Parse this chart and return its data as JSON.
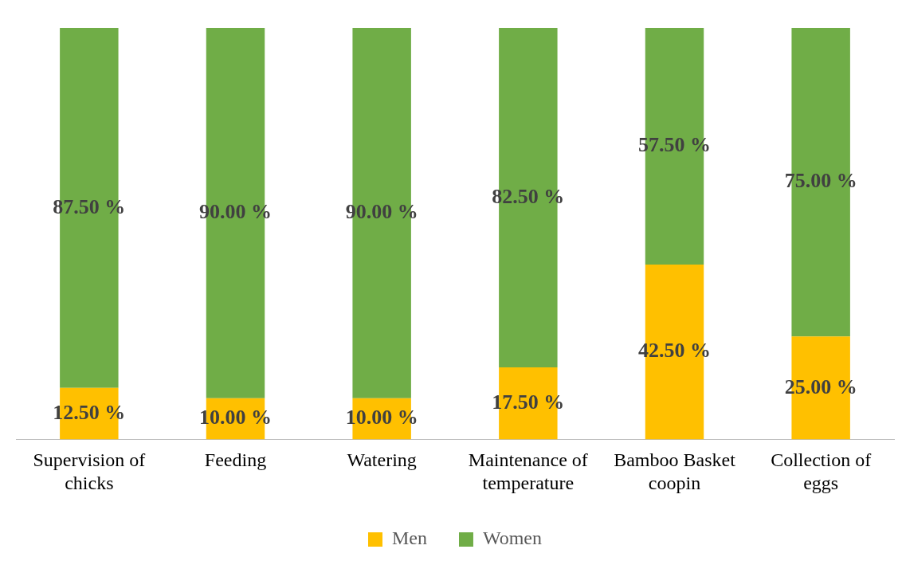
{
  "chart_data": {
    "type": "bar",
    "stacked": true,
    "legend": "bottom",
    "grid": false,
    "tick_labels": "x",
    "categories": [
      "Supervision of chicks",
      "Feeding",
      "Watering",
      "Maintenance of temperature",
      "Bamboo Basket coopin",
      "Collection of eggs"
    ],
    "series": [
      {
        "name": "Men",
        "color": "#ffc000",
        "values": [
          12.5,
          10,
          10,
          17.5,
          42.5,
          25
        ],
        "value_labels": [
          "12.50 %",
          "10.00 %",
          "10.00 %",
          "17.50 %",
          "42.50 %",
          "25.00 %"
        ]
      },
      {
        "name": "Women",
        "color": "#70ad47",
        "values": [
          87.5,
          90,
          90,
          82.5,
          57.5,
          75
        ],
        "value_labels": [
          "87.50 %",
          "90.00 %",
          "90.00 %",
          "82.50 %",
          "57.50 %",
          "75.00 %"
        ]
      }
    ]
  }
}
